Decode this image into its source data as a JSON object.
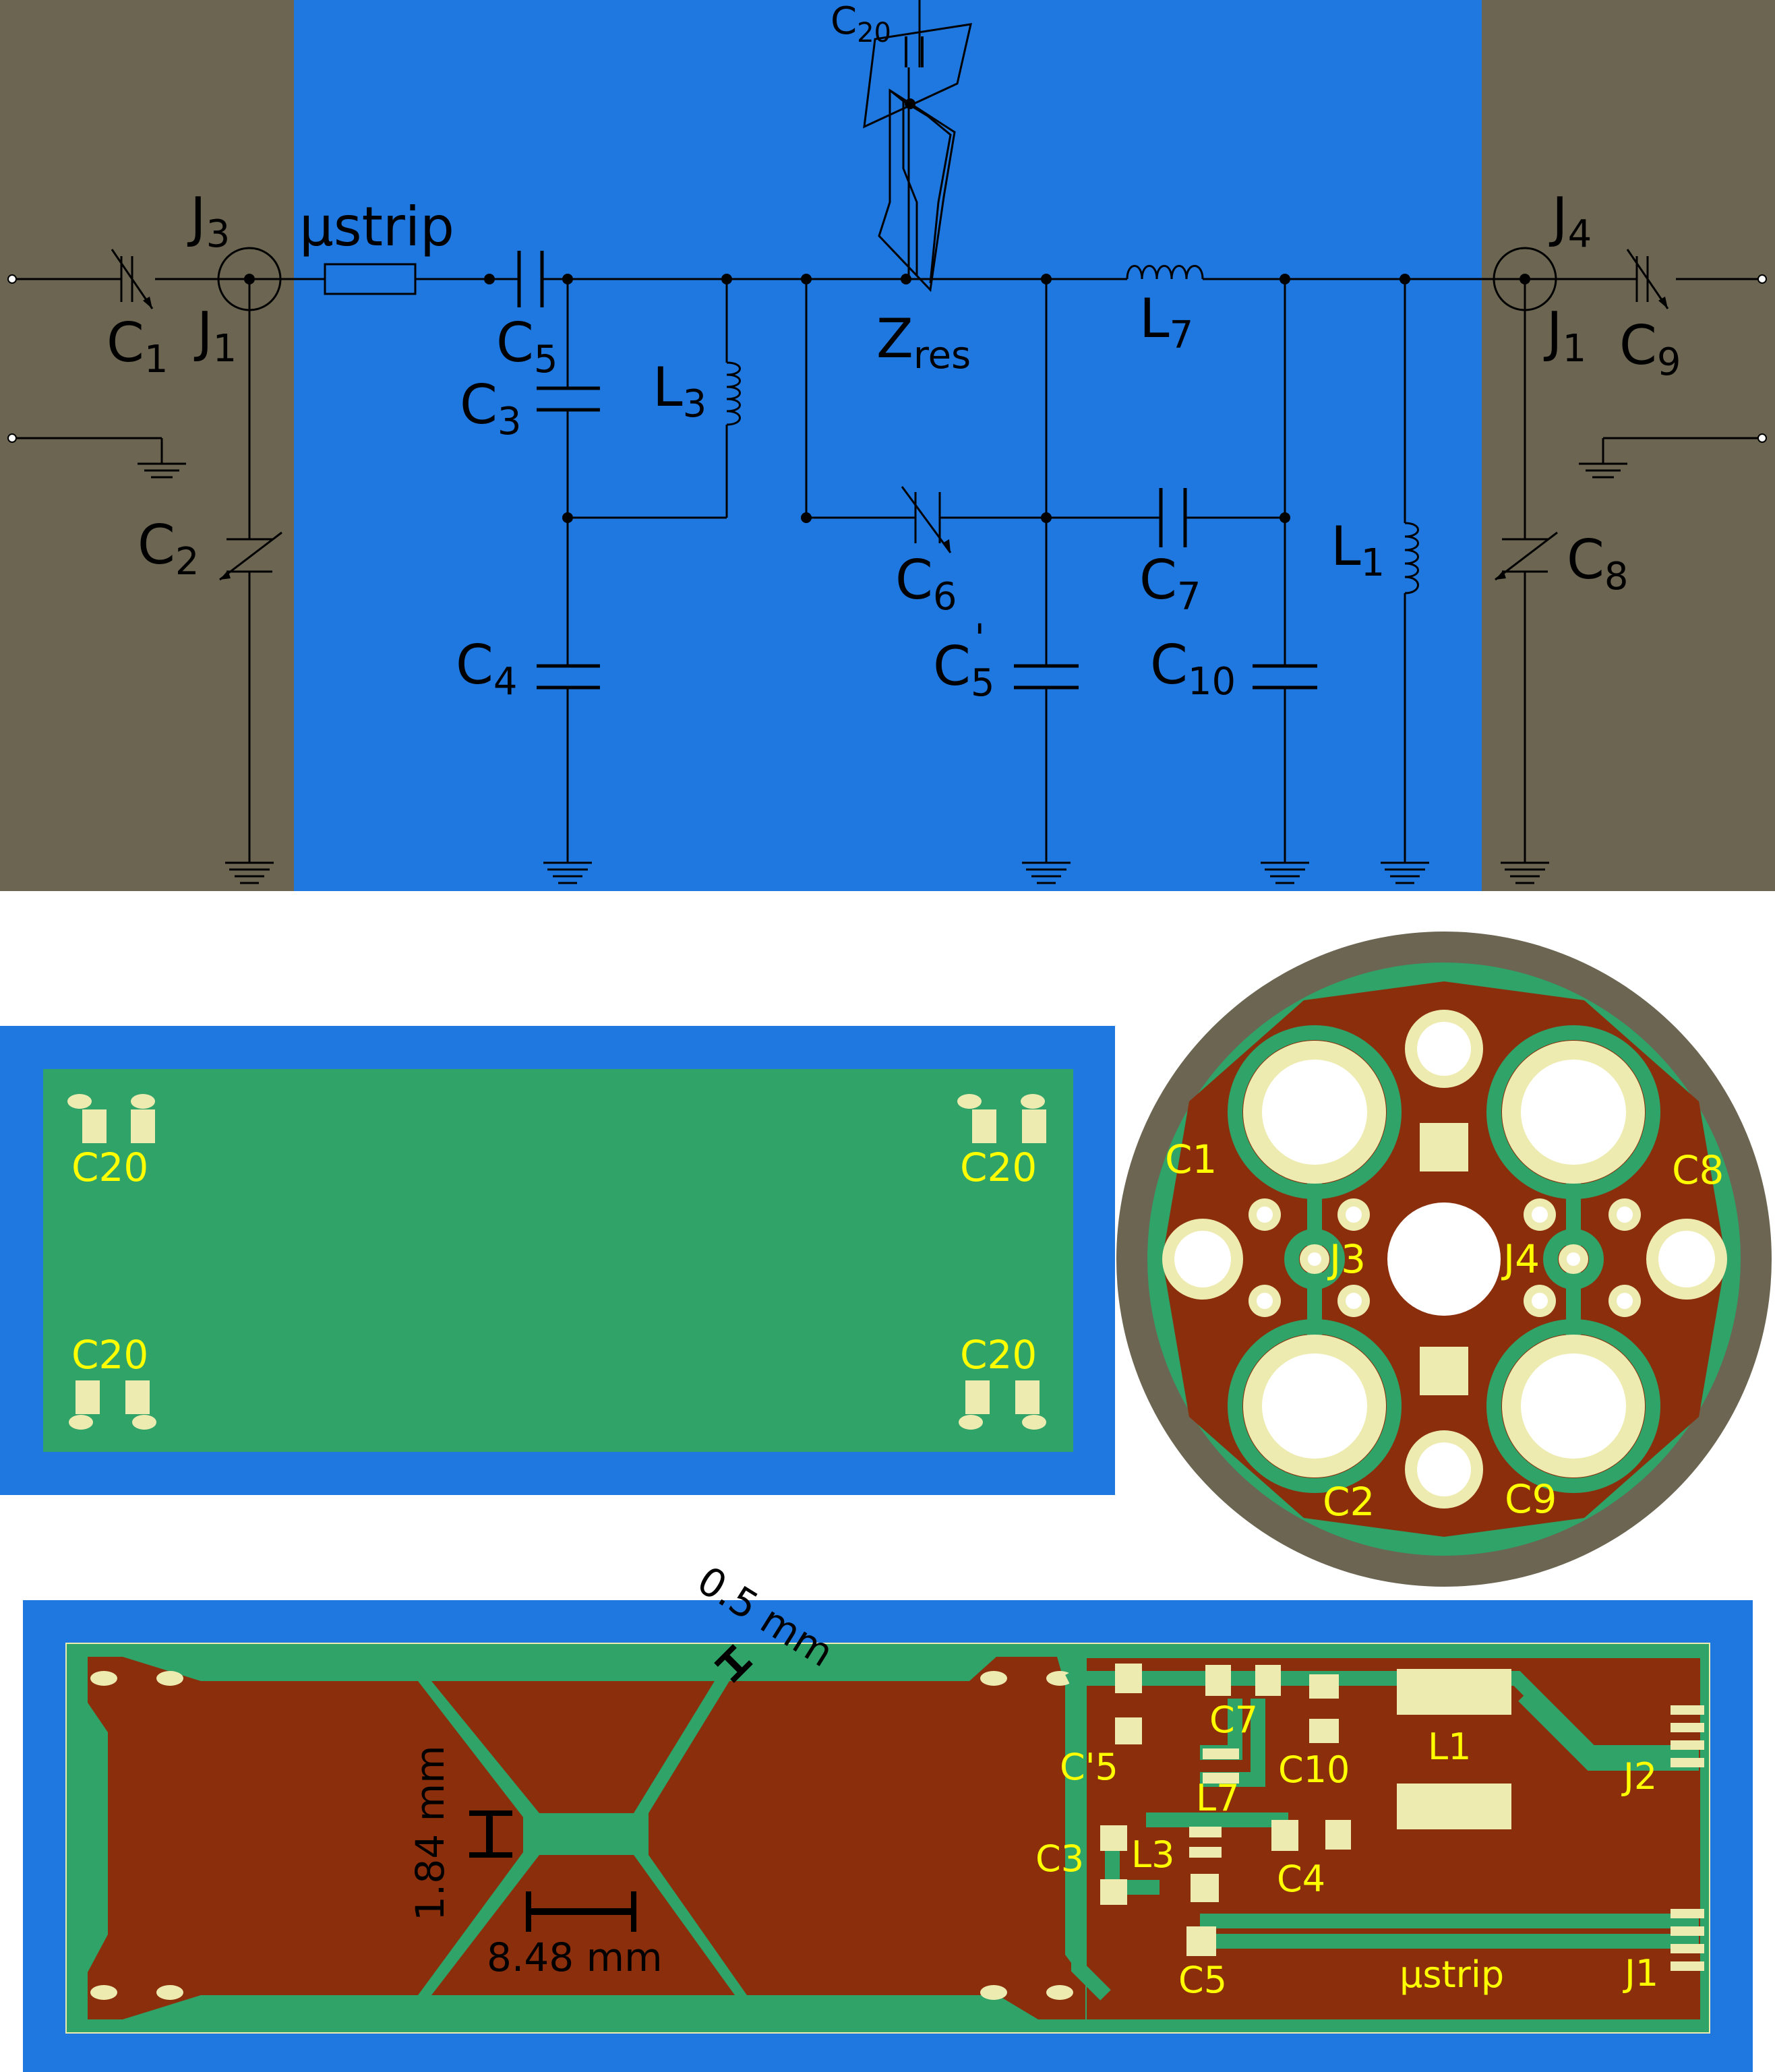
{
  "colors": {
    "blue_bg": "#1f78e0",
    "gray_bg": "#6b6552",
    "pcb_green": "#2fa368",
    "copper": "#8b2e0c",
    "pad": "#eeebb0",
    "label_yellow": "#ffff00",
    "wire": "#000000"
  },
  "schematic": {
    "components": [
      {
        "id": "c1",
        "main": "C",
        "sub": "1",
        "type": "variable-capacitor"
      },
      {
        "id": "j1-left",
        "main": "J",
        "sub": "1",
        "type": "connector"
      },
      {
        "id": "j3",
        "main": "J",
        "sub": "3",
        "type": "connector"
      },
      {
        "id": "c2",
        "main": "C",
        "sub": "2",
        "type": "variable-capacitor"
      },
      {
        "id": "ustrip",
        "main": "μstrip",
        "sub": "",
        "type": "microstrip"
      },
      {
        "id": "c5",
        "main": "C",
        "sub": "5",
        "type": "capacitor"
      },
      {
        "id": "c3",
        "main": "C",
        "sub": "3",
        "type": "capacitor"
      },
      {
        "id": "l3",
        "main": "L",
        "sub": "3",
        "type": "inductor"
      },
      {
        "id": "c4",
        "main": "C",
        "sub": "4",
        "type": "capacitor"
      },
      {
        "id": "c20",
        "main": "C",
        "sub": "20",
        "type": "capacitor"
      },
      {
        "id": "zres",
        "main": "Z",
        "sub": "res",
        "type": "resonator"
      },
      {
        "id": "c6",
        "main": "C",
        "sub": "6",
        "type": "variable-capacitor"
      },
      {
        "id": "c5p",
        "main": "C",
        "sub": "5",
        "sup": "'",
        "type": "capacitor"
      },
      {
        "id": "l7",
        "main": "L",
        "sub": "7",
        "type": "inductor"
      },
      {
        "id": "c7",
        "main": "C",
        "sub": "7",
        "type": "capacitor"
      },
      {
        "id": "c10",
        "main": "C",
        "sub": "10",
        "type": "capacitor"
      },
      {
        "id": "l1",
        "main": "L",
        "sub": "1",
        "type": "inductor"
      },
      {
        "id": "j4",
        "main": "J",
        "sub": "4",
        "type": "connector"
      },
      {
        "id": "j1-right",
        "main": "J",
        "sub": "1",
        "type": "connector"
      },
      {
        "id": "c9",
        "main": "C",
        "sub": "9",
        "type": "variable-capacitor"
      },
      {
        "id": "c8",
        "main": "C",
        "sub": "8",
        "type": "variable-capacitor"
      }
    ]
  },
  "board_top": {
    "labels": [
      "C20",
      "C20",
      "C20",
      "C20"
    ]
  },
  "board_round": {
    "labels": [
      "C1",
      "C8",
      "J3",
      "J4",
      "C2",
      "C9"
    ]
  },
  "board_bottom": {
    "dimensions": {
      "gap": "0.5 mm",
      "height": "1.84 mm",
      "width": "8.48 mm"
    },
    "labels": [
      "C'5",
      "C7",
      "C10",
      "L1",
      "J2",
      "L7",
      "C3",
      "L3",
      "C4",
      "C5",
      "μstrip",
      "J1"
    ]
  }
}
